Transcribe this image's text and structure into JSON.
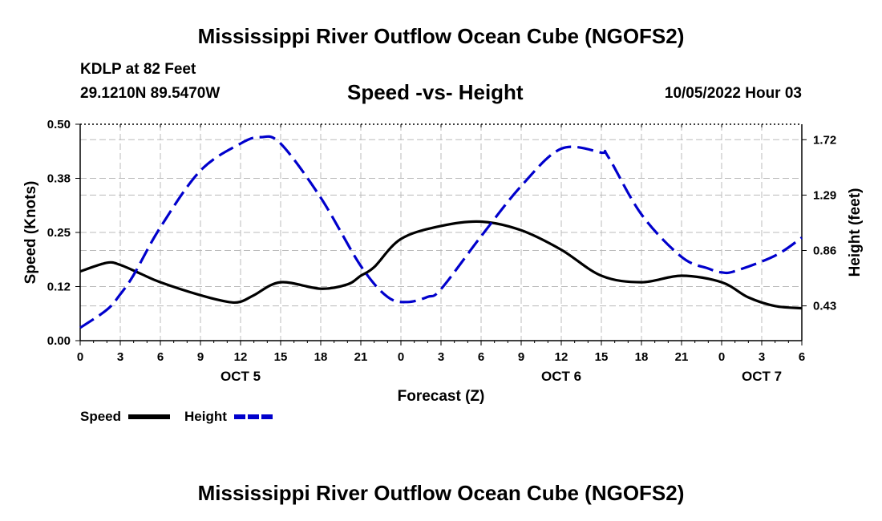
{
  "header": {
    "title": "Mississippi River Outflow Ocean Cube (NGOFS2)",
    "station": "KDLP at 82 Feet",
    "coords": "29.1210N  89.5470W",
    "chart_subtitle": "Speed -vs- Height",
    "datetime": "10/05/2022 Hour 03"
  },
  "footer": {
    "title": "Mississippi River Outflow Ocean Cube (NGOFS2)"
  },
  "legend": {
    "speed_label": "Speed",
    "height_label": "Height"
  },
  "colors": {
    "speed": "#000000",
    "height": "#0000cc",
    "grid": "#bbbbbb"
  },
  "chart_data": {
    "type": "line",
    "title": "Speed -vs- Height",
    "xlabel": "Forecast (Z)",
    "ylabel": "Speed (Knots)",
    "y2label": "Height (feet)",
    "x_unit": "hours since OCT 5 00Z",
    "xlim": [
      0,
      54
    ],
    "ylim": [
      0,
      0.5
    ],
    "y2lim": [
      0.16,
      1.84
    ],
    "x_ticks": [
      0,
      3,
      6,
      9,
      12,
      15,
      18,
      21,
      24,
      27,
      30,
      33,
      36,
      39,
      42,
      45,
      48,
      51,
      54
    ],
    "x_tick_labels": [
      "0",
      "3",
      "6",
      "9",
      "12",
      "15",
      "18",
      "21",
      "0",
      "3",
      "6",
      "9",
      "12",
      "15",
      "18",
      "21",
      "0",
      "3",
      "6"
    ],
    "y_ticks": [
      0.0,
      0.125,
      0.25,
      0.375,
      0.5
    ],
    "y_tick_labels": [
      "0.00",
      "0.12",
      "0.25",
      "0.38",
      "0.50"
    ],
    "y2_ticks": [
      0.43,
      0.86,
      1.29,
      1.72
    ],
    "y2_tick_labels": [
      "0.43",
      "0.86",
      "1.29",
      "1.72"
    ],
    "day_labels": [
      {
        "x": 12,
        "label": "OCT 5"
      },
      {
        "x": 36,
        "label": "OCT 6"
      },
      {
        "x": 51,
        "label": "OCT 7"
      }
    ],
    "grid": true,
    "series": [
      {
        "name": "Speed",
        "axis": "left",
        "style": "solid",
        "x": [
          0,
          2,
          3,
          4.5,
          6,
          9,
          11,
          12,
          13,
          15,
          18,
          20,
          21,
          22,
          24,
          27,
          30,
          33,
          36,
          39,
          42,
          45,
          48,
          50,
          52,
          54
        ],
        "values": [
          0.16,
          0.18,
          0.175,
          0.155,
          0.135,
          0.105,
          0.09,
          0.09,
          0.105,
          0.135,
          0.12,
          0.13,
          0.15,
          0.17,
          0.235,
          0.265,
          0.275,
          0.255,
          0.21,
          0.15,
          0.135,
          0.15,
          0.135,
          0.1,
          0.08,
          0.075
        ]
      },
      {
        "name": "Height",
        "axis": "right",
        "style": "dashed",
        "x": [
          0,
          2,
          3,
          4,
          6,
          9,
          12,
          13.5,
          15,
          18,
          21,
          23,
          24.5,
          26,
          27,
          30,
          33,
          36,
          39,
          39.5,
          42,
          45,
          47,
          48,
          49,
          52,
          54
        ],
        "values": [
          0.26,
          0.4,
          0.52,
          0.67,
          1.04,
          1.48,
          1.69,
          1.74,
          1.69,
          1.27,
          0.74,
          0.5,
          0.46,
          0.5,
          0.56,
          0.97,
          1.36,
          1.65,
          1.62,
          1.59,
          1.14,
          0.81,
          0.72,
          0.69,
          0.7,
          0.82,
          0.96
        ]
      }
    ]
  }
}
